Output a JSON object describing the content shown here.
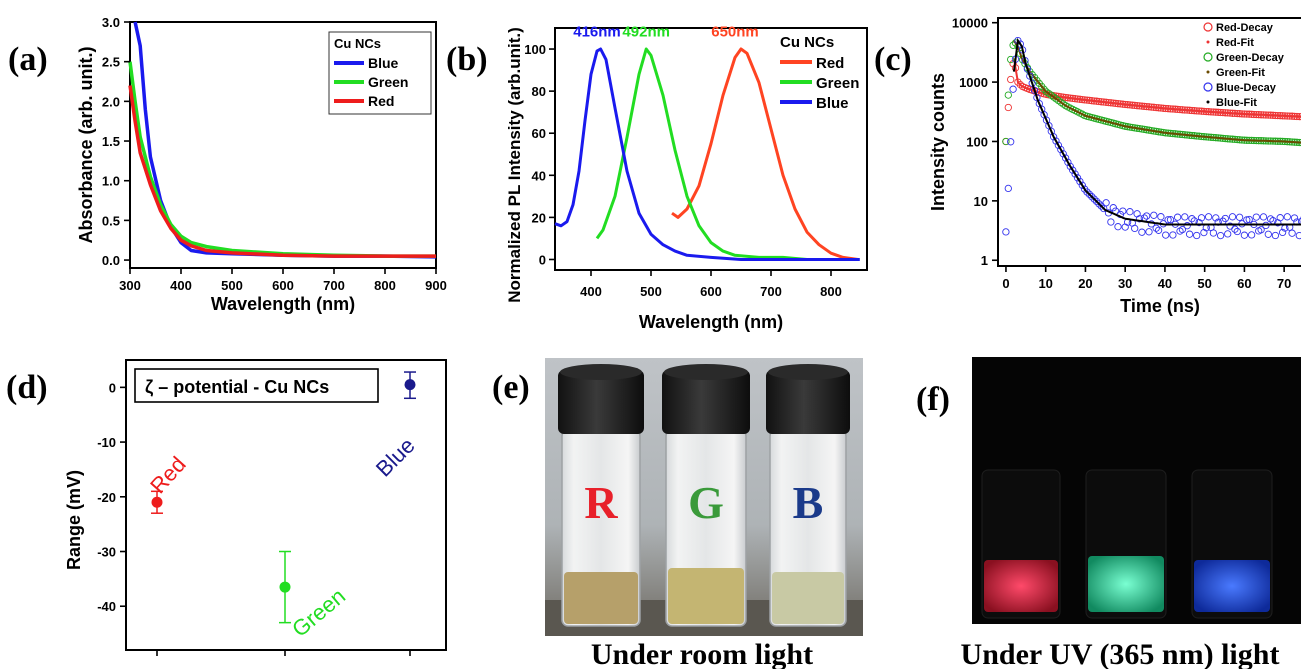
{
  "panel_letters": [
    "(a)",
    "(b)",
    "(c)",
    "(d)",
    "(e)",
    "(f)"
  ],
  "colors": {
    "red": "#ee1c1c",
    "green": "#22dd22",
    "blue": "#1a1aee",
    "navy": "#1a1a8c",
    "orange_red": "#ff4422"
  },
  "chart_data": [
    {
      "id": "a",
      "type": "line",
      "xlabel": "Wavelength (nm)",
      "ylabel": "Absorbance (arb. unit.)",
      "xlim": [
        300,
        900
      ],
      "ylim": [
        -0.1,
        3.0
      ],
      "xticks": [
        300,
        400,
        500,
        600,
        700,
        800,
        900
      ],
      "yticks": [
        "0.0",
        "0.5",
        "1.0",
        "1.5",
        "2.0",
        "2.5",
        "3.0"
      ],
      "legend_title": "Cu NCs",
      "legend_position": "top-right",
      "series": [
        {
          "name": "Blue",
          "x": [
            310,
            320,
            330,
            340,
            360,
            380,
            400,
            420,
            450,
            500,
            600,
            700,
            800,
            900
          ],
          "y": [
            3.0,
            2.7,
            1.9,
            1.3,
            0.75,
            0.42,
            0.22,
            0.12,
            0.09,
            0.08,
            0.06,
            0.05,
            0.05,
            0.04
          ]
        },
        {
          "name": "Green",
          "x": [
            300,
            310,
            320,
            340,
            360,
            380,
            400,
            420,
            450,
            500,
            600,
            700,
            800,
            900
          ],
          "y": [
            2.5,
            2.0,
            1.55,
            1.05,
            0.7,
            0.45,
            0.3,
            0.22,
            0.17,
            0.12,
            0.08,
            0.06,
            0.05,
            0.05
          ]
        },
        {
          "name": "Red",
          "x": [
            300,
            310,
            320,
            340,
            360,
            380,
            400,
            420,
            450,
            500,
            600,
            700,
            800,
            900
          ],
          "y": [
            2.2,
            1.75,
            1.35,
            0.95,
            0.62,
            0.4,
            0.25,
            0.18,
            0.12,
            0.09,
            0.06,
            0.05,
            0.05,
            0.05
          ]
        }
      ]
    },
    {
      "id": "b",
      "type": "line",
      "xlabel": "Wavelength (nm)",
      "ylabel": "Normalized PL Intensity (arb.unit.)",
      "xlim": [
        340,
        860
      ],
      "ylim": [
        -5,
        110
      ],
      "xticks": [
        400,
        500,
        600,
        700,
        800
      ],
      "yticks": [
        0,
        20,
        40,
        60,
        80,
        100
      ],
      "legend_title": "Cu NCs",
      "legend_position": "top-right",
      "annotations": [
        {
          "text": "416nm",
          "x": 410,
          "y": 106,
          "series": "Blue"
        },
        {
          "text": "492nm",
          "x": 492,
          "y": 106,
          "series": "Green"
        },
        {
          "text": "650nm",
          "x": 640,
          "y": 106,
          "series": "Red"
        }
      ],
      "series": [
        {
          "name": "Red",
          "x": [
            535,
            545,
            560,
            580,
            600,
            620,
            640,
            650,
            660,
            680,
            700,
            720,
            740,
            760,
            780,
            800,
            820,
            845
          ],
          "y": [
            22,
            20,
            24,
            35,
            55,
            78,
            96,
            100,
            98,
            84,
            62,
            40,
            24,
            13,
            7,
            3,
            1,
            0
          ]
        },
        {
          "name": "Green",
          "x": [
            410,
            420,
            440,
            460,
            480,
            492,
            500,
            520,
            540,
            560,
            580,
            600,
            620,
            640,
            680,
            720,
            760
          ],
          "y": [
            10,
            14,
            30,
            58,
            88,
            100,
            97,
            78,
            52,
            30,
            16,
            8,
            4,
            2,
            1,
            1,
            0
          ]
        },
        {
          "name": "Blue",
          "x": [
            340,
            350,
            360,
            370,
            380,
            390,
            400,
            410,
            416,
            425,
            440,
            460,
            480,
            500,
            520,
            540,
            560,
            600,
            650,
            700,
            760,
            848
          ],
          "y": [
            17,
            16,
            18,
            26,
            42,
            66,
            88,
            99,
            100,
            95,
            72,
            42,
            22,
            12,
            7,
            4,
            2,
            1,
            0,
            0,
            0,
            0
          ]
        }
      ]
    },
    {
      "id": "c",
      "type": "scatter",
      "xlabel": "Time (ns)",
      "ylabel": "Intensity counts",
      "yscale": "log",
      "xlim": [
        -2,
        76
      ],
      "ylim": [
        0.8,
        12000
      ],
      "xticks": [
        0,
        10,
        20,
        30,
        40,
        50,
        60,
        70
      ],
      "yticks": [
        "1",
        "10",
        "100",
        "1000",
        "10000"
      ],
      "legend_position": "top-right",
      "legend_labels": [
        "Red-Decay",
        "Red-Fit",
        "Green-Decay",
        "Green-Fit",
        "Blue-Decay",
        "Blue-Fit"
      ],
      "series": [
        {
          "name": "Red-Decay",
          "x": [
            0,
            1,
            2,
            3,
            4,
            6,
            10,
            15,
            20,
            30,
            40,
            50,
            60,
            70,
            75
          ],
          "y": [
            100,
            900,
            2500,
            1000,
            850,
            750,
            620,
            550,
            500,
            420,
            360,
            320,
            290,
            270,
            260
          ]
        },
        {
          "name": "Green-Decay",
          "x": [
            0,
            1,
            2,
            3,
            4,
            6,
            10,
            15,
            20,
            30,
            40,
            50,
            60,
            70,
            75
          ],
          "y": [
            100,
            2000,
            5000,
            4000,
            2500,
            1500,
            700,
            400,
            270,
            180,
            140,
            120,
            105,
            100,
            95
          ]
        },
        {
          "name": "Blue-Decay",
          "x": [
            0,
            1,
            2,
            3,
            4,
            5,
            8,
            12,
            16,
            20,
            25,
            30,
            40,
            50,
            60,
            70,
            75
          ],
          "y": [
            3,
            50,
            1500,
            5000,
            4000,
            2000,
            500,
            120,
            40,
            15,
            7,
            5,
            4,
            4,
            4,
            4,
            4
          ]
        }
      ]
    },
    {
      "id": "d",
      "type": "scatter",
      "ylabel": "Range (mV)",
      "ylim": [
        -48,
        5
      ],
      "yticks": [
        0,
        -10,
        -20,
        -30,
        -40
      ],
      "legend_title": "ζ – potential - Cu NCs",
      "legend_position": "top-left",
      "categories": [
        "Red",
        "Green",
        "Blue"
      ],
      "values": [
        -21,
        -36.5,
        0.5
      ],
      "error_low": [
        -23,
        -43,
        -2
      ],
      "error_high": [
        -19,
        -30,
        2.8
      ]
    }
  ],
  "photos": {
    "e": {
      "caption": "Under room light",
      "vial_letters": [
        "R",
        "G",
        "B"
      ]
    },
    "f": {
      "caption": "Under UV (365 nm) light"
    }
  }
}
